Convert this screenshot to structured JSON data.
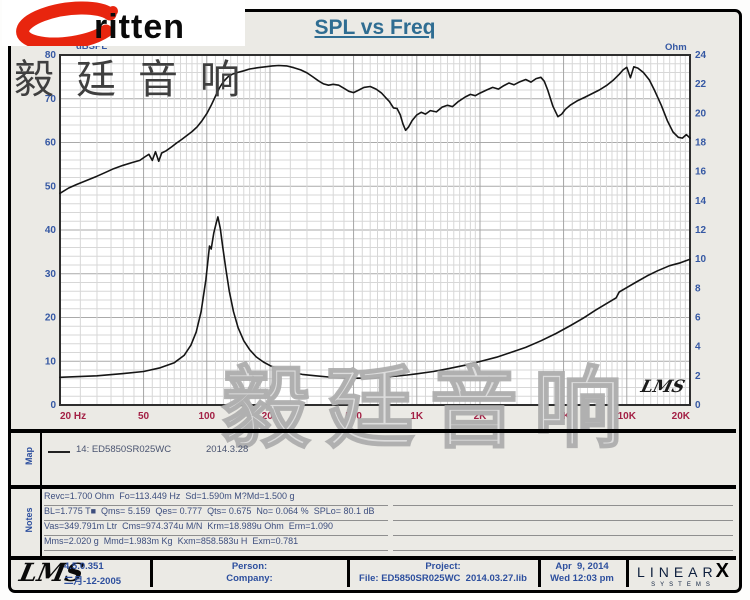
{
  "header": {
    "brand": "ritten",
    "brand_cn": "毅廷音响",
    "title": "SPL vs Freq"
  },
  "chart_data": {
    "type": "line",
    "title": "SPL vs Freq",
    "x_axis": {
      "scale": "log",
      "unit": "Hz",
      "min": 20,
      "max": 20000,
      "ticks": [
        "20 Hz",
        "50",
        "100",
        "200",
        "500",
        "1K",
        "2K",
        "5K",
        "10K",
        "20K"
      ],
      "tick_values": [
        20,
        50,
        100,
        200,
        500,
        1000,
        2000,
        5000,
        10000,
        20000
      ],
      "label_color": "#a32045"
    },
    "y_axis_left": {
      "label": "dBSPL",
      "min": 0,
      "max": 80,
      "tick_step": 10,
      "label_color": "#3558a3"
    },
    "y_axis_right": {
      "label": "Ohm",
      "min": 0,
      "max": 24,
      "tick_step": 2,
      "label_color": "#3558a3"
    },
    "grid": true,
    "series": [
      {
        "name": "SPL",
        "axis": "left",
        "color": "#151515",
        "points": [
          [
            20,
            48.4
          ],
          [
            22,
            49.6
          ],
          [
            24,
            50.4
          ],
          [
            27,
            51.4
          ],
          [
            30,
            52.3
          ],
          [
            33,
            53.2
          ],
          [
            36,
            54.0
          ],
          [
            40,
            54.8
          ],
          [
            44,
            55.4
          ],
          [
            48,
            55.9
          ],
          [
            51,
            56.8
          ],
          [
            53,
            57.3
          ],
          [
            55,
            55.9
          ],
          [
            57,
            57.9
          ],
          [
            59,
            55.7
          ],
          [
            61,
            57.6
          ],
          [
            64,
            58.1
          ],
          [
            68,
            59.0
          ],
          [
            72,
            59.9
          ],
          [
            76,
            60.7
          ],
          [
            80,
            61.5
          ],
          [
            85,
            62.5
          ],
          [
            90,
            63.6
          ],
          [
            95,
            65.0
          ],
          [
            100,
            66.6
          ],
          [
            105,
            68.5
          ],
          [
            110,
            70.6
          ],
          [
            115,
            72.5
          ],
          [
            120,
            73.9
          ],
          [
            126,
            75.0
          ],
          [
            132,
            75.6
          ],
          [
            140,
            76.0
          ],
          [
            150,
            76.4
          ],
          [
            160,
            76.8
          ],
          [
            175,
            77.1
          ],
          [
            190,
            77.3
          ],
          [
            205,
            77.5
          ],
          [
            220,
            77.6
          ],
          [
            240,
            77.5
          ],
          [
            260,
            77.1
          ],
          [
            280,
            76.6
          ],
          [
            300,
            75.9
          ],
          [
            320,
            75.0
          ],
          [
            340,
            74.1
          ],
          [
            360,
            73.4
          ],
          [
            380,
            73.1
          ],
          [
            400,
            73.3
          ],
          [
            425,
            73.1
          ],
          [
            450,
            72.4
          ],
          [
            475,
            71.7
          ],
          [
            500,
            71.4
          ],
          [
            530,
            72.0
          ],
          [
            560,
            72.6
          ],
          [
            600,
            72.8
          ],
          [
            640,
            72.2
          ],
          [
            680,
            71.3
          ],
          [
            710,
            70.3
          ],
          [
            740,
            69.4
          ],
          [
            775,
            67.9
          ],
          [
            805,
            67.8
          ],
          [
            835,
            66.3
          ],
          [
            860,
            64.2
          ],
          [
            885,
            62.8
          ],
          [
            915,
            63.6
          ],
          [
            950,
            65.0
          ],
          [
            1000,
            66.3
          ],
          [
            1050,
            66.9
          ],
          [
            1100,
            66.5
          ],
          [
            1160,
            67.3
          ],
          [
            1240,
            67.0
          ],
          [
            1320,
            68.1
          ],
          [
            1400,
            68.5
          ],
          [
            1480,
            68.2
          ],
          [
            1580,
            69.4
          ],
          [
            1700,
            70.4
          ],
          [
            1800,
            71.0
          ],
          [
            1900,
            70.7
          ],
          [
            2000,
            71.3
          ],
          [
            2150,
            72.0
          ],
          [
            2300,
            72.6
          ],
          [
            2450,
            72.2
          ],
          [
            2600,
            73.0
          ],
          [
            2750,
            73.6
          ],
          [
            2900,
            73.2
          ],
          [
            3100,
            73.9
          ],
          [
            3300,
            74.4
          ],
          [
            3500,
            73.8
          ],
          [
            3700,
            74.6
          ],
          [
            3900,
            74.9
          ],
          [
            4050,
            74.0
          ],
          [
            4200,
            72.0
          ],
          [
            4450,
            68.3
          ],
          [
            4700,
            65.9
          ],
          [
            4900,
            66.5
          ],
          [
            5100,
            67.6
          ],
          [
            5400,
            68.6
          ],
          [
            5800,
            69.5
          ],
          [
            6300,
            70.3
          ],
          [
            6800,
            71.1
          ],
          [
            7400,
            72.0
          ],
          [
            8000,
            73.0
          ],
          [
            8600,
            74.2
          ],
          [
            9200,
            75.6
          ],
          [
            9600,
            76.6
          ],
          [
            10000,
            77.2
          ],
          [
            10400,
            74.8
          ],
          [
            10800,
            77.3
          ],
          [
            11300,
            77.0
          ],
          [
            12000,
            76.0
          ],
          [
            12800,
            74.3
          ],
          [
            13600,
            71.8
          ],
          [
            14600,
            68.5
          ],
          [
            15600,
            65.0
          ],
          [
            16600,
            62.4
          ],
          [
            17600,
            61.2
          ],
          [
            18400,
            61.0
          ],
          [
            19200,
            61.8
          ],
          [
            20000,
            61.0
          ]
        ]
      },
      {
        "name": "Impedance",
        "axis": "right",
        "color": "#151515",
        "points": [
          [
            20,
            1.9
          ],
          [
            30,
            2.0
          ],
          [
            40,
            2.15
          ],
          [
            50,
            2.3
          ],
          [
            60,
            2.55
          ],
          [
            70,
            2.9
          ],
          [
            78,
            3.4
          ],
          [
            84,
            4.1
          ],
          [
            89,
            5.0
          ],
          [
            94,
            6.4
          ],
          [
            99,
            8.6
          ],
          [
            103,
            10.9
          ],
          [
            105,
            10.7
          ],
          [
            108,
            11.8
          ],
          [
            111,
            12.5
          ],
          [
            113,
            12.9
          ],
          [
            116,
            12.1
          ],
          [
            119,
            10.9
          ],
          [
            123,
            9.4
          ],
          [
            128,
            7.8
          ],
          [
            134,
            6.4
          ],
          [
            141,
            5.3
          ],
          [
            150,
            4.4
          ],
          [
            160,
            3.8
          ],
          [
            172,
            3.3
          ],
          [
            186,
            2.95
          ],
          [
            200,
            2.7
          ],
          [
            225,
            2.4
          ],
          [
            250,
            2.25
          ],
          [
            285,
            2.1
          ],
          [
            330,
            2.0
          ],
          [
            380,
            1.92
          ],
          [
            440,
            1.87
          ],
          [
            520,
            1.84
          ],
          [
            600,
            1.86
          ],
          [
            700,
            1.91
          ],
          [
            800,
            1.98
          ],
          [
            900,
            2.06
          ],
          [
            1000,
            2.14
          ],
          [
            1200,
            2.3
          ],
          [
            1400,
            2.48
          ],
          [
            1700,
            2.73
          ],
          [
            2000,
            2.98
          ],
          [
            2400,
            3.28
          ],
          [
            2800,
            3.6
          ],
          [
            3300,
            3.95
          ],
          [
            3900,
            4.4
          ],
          [
            4600,
            4.9
          ],
          [
            5400,
            5.45
          ],
          [
            6200,
            5.95
          ],
          [
            7100,
            6.5
          ],
          [
            8100,
            7.0
          ],
          [
            8900,
            7.35
          ],
          [
            9200,
            7.75
          ],
          [
            10000,
            8.05
          ],
          [
            11000,
            8.4
          ],
          [
            12500,
            8.85
          ],
          [
            14000,
            9.2
          ],
          [
            16000,
            9.55
          ],
          [
            18000,
            9.75
          ],
          [
            20000,
            10.0
          ]
        ]
      }
    ],
    "watermark": {
      "signature": "LMS",
      "overlay": "毅廷音响"
    }
  },
  "map": {
    "label": "Map",
    "legend": "14: ED5850SR025WC",
    "date": "2014.3.28"
  },
  "notes": {
    "label": "Notes",
    "lines": [
      "Revc=1.700 Ohm  Fo=113.449 Hz  Sd=1.590m M?Md=1.500 g",
      "BL=1.775 T■  Qms= 5.159  Qes= 0.777  Qts= 0.675  No= 0.064 %  SPLo= 80.1 dB",
      "Vas=349.791m Ltr  Cms=974.374u M/N  Krm=18.989u Ohm  Erm=1.090",
      "Mms=2.020 g  Mmd=1.983m Kg  Kxm=858.583u H  Exm=0.781"
    ]
  },
  "footer": {
    "lms_logo": "LMS",
    "version": "4.5.0.351",
    "date_cn": "二月-12-2005",
    "person_label": "Person:",
    "company_label": "Company:",
    "project_label": "Project:",
    "file_line": "File: ED5850SR025WC  2014.03.27.lib",
    "date": "Apr  9, 2014",
    "time": "Wed 12:03 pm",
    "linearx": {
      "main": "LINEAR",
      "x": "X",
      "sub": "SYSTEMS"
    }
  }
}
